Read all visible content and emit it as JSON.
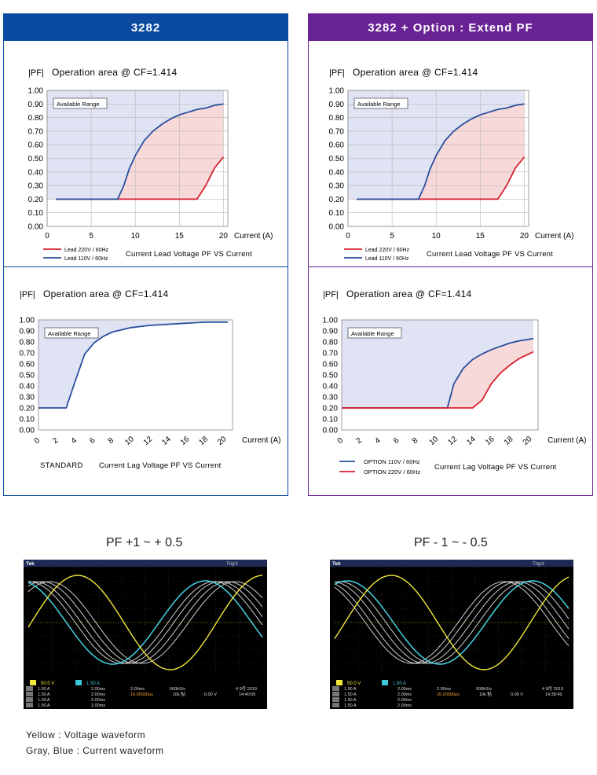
{
  "headers": {
    "left": "3282",
    "right": "3282 + Option : Extend PF",
    "left_color": "#0a4aa0",
    "right_color": "#6a2395"
  },
  "chart_data": [
    {
      "id": "tl",
      "type": "area",
      "title": "Operation area @ CF=1.414",
      "ylabel": "|PF|",
      "xlabel": "Current (A)",
      "xlim": [
        0,
        20.5
      ],
      "ylim": [
        0,
        1
      ],
      "xticks": [
        0,
        5,
        10,
        15,
        20
      ],
      "xtick_labels": [
        "0",
        "5",
        "10",
        "15",
        "20"
      ],
      "xtick_rotate": false,
      "yticks": [
        "0.00",
        "0.10",
        "0.20",
        "0.30",
        "0.40",
        "0.50",
        "0.60",
        "0.70",
        "0.80",
        "0.90",
        "1.00"
      ],
      "grid": true,
      "annotation": "Available Range",
      "caption": "Current Lead Voltage PF VS Current",
      "series": [
        {
          "name": "Lead 220V / 60Hz",
          "color": "#d62030",
          "x": [
            1,
            17,
            18,
            19,
            20
          ],
          "y": [
            0.2,
            0.2,
            0.3,
            0.43,
            0.51
          ]
        },
        {
          "name": "Lead 110V / 60Hz",
          "color": "#2a4f9e",
          "x": [
            1,
            8,
            8.7,
            9.3,
            10,
            11,
            12,
            13,
            14,
            15,
            16,
            17,
            18,
            19,
            20
          ],
          "y": [
            0.2,
            0.2,
            0.3,
            0.42,
            0.52,
            0.63,
            0.7,
            0.75,
            0.79,
            0.82,
            0.84,
            0.86,
            0.87,
            0.89,
            0.9
          ]
        }
      ]
    },
    {
      "id": "tr",
      "type": "area",
      "title": "Operation area @ CF=1.414",
      "ylabel": "|PF|",
      "xlabel": "Current (A)",
      "xlim": [
        0,
        20.5
      ],
      "ylim": [
        0,
        1
      ],
      "xticks": [
        0,
        5,
        10,
        15,
        20
      ],
      "xtick_labels": [
        "0",
        "5",
        "10",
        "15",
        "20"
      ],
      "xtick_rotate": false,
      "yticks": [
        "0.00",
        "0.10",
        "0.20",
        "0.30",
        "0.40",
        "0.50",
        "0.60",
        "0.70",
        "0.80",
        "0.90",
        "1.00"
      ],
      "grid": true,
      "annotation": "Available Range",
      "caption": "Current Lead Voltage PF VS Current",
      "series": [
        {
          "name": "Lead 220V / 60Hz",
          "color": "#d62030",
          "x": [
            1,
            17,
            18,
            19,
            20
          ],
          "y": [
            0.2,
            0.2,
            0.3,
            0.43,
            0.51
          ]
        },
        {
          "name": "Lead 110V / 60Hz",
          "color": "#2a4f9e",
          "x": [
            1,
            8,
            8.7,
            9.3,
            10,
            11,
            12,
            13,
            14,
            15,
            16,
            17,
            18,
            19,
            20
          ],
          "y": [
            0.2,
            0.2,
            0.3,
            0.42,
            0.52,
            0.63,
            0.7,
            0.75,
            0.79,
            0.82,
            0.84,
            0.86,
            0.87,
            0.89,
            0.9
          ]
        }
      ]
    },
    {
      "id": "bl",
      "type": "area",
      "title": "Operation area @ CF=1.414",
      "ylabel": "|PF|",
      "xlabel": "Current (A)",
      "xlim": [
        0,
        21
      ],
      "ylim": [
        0,
        1
      ],
      "xticks": [
        0,
        2,
        4,
        6,
        8,
        10,
        12,
        14,
        16,
        18,
        20
      ],
      "xtick_labels": [
        "0",
        "2",
        "4",
        "6",
        "8",
        "10",
        "12",
        "14",
        "16",
        "18",
        "20"
      ],
      "xtick_rotate": true,
      "yticks": [
        "0.00",
        "0.10",
        "0.20",
        "0.30",
        "0.40",
        "0.50",
        "0.60",
        "0.70",
        "0.80",
        "0.90",
        "1.00"
      ],
      "grid": false,
      "annotation": "Available Range",
      "caption": "Current Lag Voltage PF VS Current",
      "standard_label": "STANDARD",
      "series": [
        {
          "name": "STANDARD",
          "color": "#2a4f9e",
          "x": [
            0,
            3,
            4,
            5,
            6,
            7,
            8,
            9,
            10,
            12,
            14,
            16,
            18,
            20.5
          ],
          "y": [
            0.2,
            0.2,
            0.45,
            0.69,
            0.79,
            0.85,
            0.89,
            0.91,
            0.93,
            0.95,
            0.96,
            0.97,
            0.98,
            0.98
          ]
        }
      ]
    },
    {
      "id": "br",
      "type": "area",
      "title": "Operation area @ CF=1.414",
      "ylabel": "|PF|",
      "xlabel": "Current (A)",
      "xlim": [
        0,
        21
      ],
      "ylim": [
        0,
        1
      ],
      "xticks": [
        0,
        2,
        4,
        6,
        8,
        10,
        12,
        14,
        16,
        18,
        20
      ],
      "xtick_labels": [
        "0",
        "2",
        "4",
        "6",
        "8",
        "10",
        "12",
        "14",
        "16",
        "18",
        "20"
      ],
      "xtick_rotate": true,
      "yticks": [
        "0.00",
        "0.10",
        "0.20",
        "0.30",
        "0.40",
        "0.50",
        "0.60",
        "0.70",
        "0.80",
        "0.90",
        "1.00"
      ],
      "grid": false,
      "annotation": "Available Range",
      "caption": "Current Lag Voltage PF VS Current",
      "series": [
        {
          "name": "OPTION  110V / 60Hz",
          "color": "#2a4f9e",
          "x": [
            0,
            11.3,
            12,
            13,
            14,
            15,
            16,
            17,
            18,
            19,
            20.5
          ],
          "y": [
            0.2,
            0.2,
            0.42,
            0.56,
            0.64,
            0.69,
            0.73,
            0.76,
            0.79,
            0.81,
            0.83
          ]
        },
        {
          "name": "OPTION  220V / 60Hz",
          "color": "#d62030",
          "x": [
            0,
            14,
            15,
            16,
            17,
            18,
            19,
            20,
            20.5
          ],
          "y": [
            0.2,
            0.2,
            0.27,
            0.42,
            0.52,
            0.59,
            0.65,
            0.69,
            0.71
          ]
        }
      ]
    }
  ],
  "waveforms": {
    "left_title": "PF +1 ~ + 0.5",
    "right_title": "PF - 1 ~ - 0.5",
    "note_line1": "Yellow : Voltage waveform",
    "note_line2": "Gray, Blue : Current waveform",
    "scope_left": {
      "brand": "Tek",
      "trig": "Trig'd",
      "ch1": "50.0 V",
      "ch2": "1.50 A",
      "rows": [
        [
          "1.50 A",
          "2.00ms"
        ],
        [
          "1.50 A",
          "2.00ms"
        ],
        [
          "1.50 A",
          "2.00ms"
        ],
        [
          "1.50 A",
          "2.00ms"
        ]
      ],
      "timebase": "2.00ms",
      "rate": "500kS/s",
      "rec": "10k 點",
      "trigv": "0.00 V",
      "date": "4 9月 2019",
      "time": "14:40:05",
      "pos": "16.00000μs"
    },
    "scope_right": {
      "brand": "Tek",
      "trig": "Trig'd",
      "ch1": "50.0 V",
      "ch2": "1.50 A",
      "rows": [
        [
          "1.50 A",
          "2.00ms"
        ],
        [
          "1.50 A",
          "2.00ms"
        ],
        [
          "1.50 A",
          "2.00ms"
        ],
        [
          "1.50 A",
          "2.00ms"
        ]
      ],
      "timebase": "2.00ms",
      "rate": "500kS/s",
      "rec": "10k 點",
      "trigv": "0.00 V",
      "date": "4 9月 2019",
      "time": "14:38:49",
      "pos": "16.00000μs"
    }
  }
}
